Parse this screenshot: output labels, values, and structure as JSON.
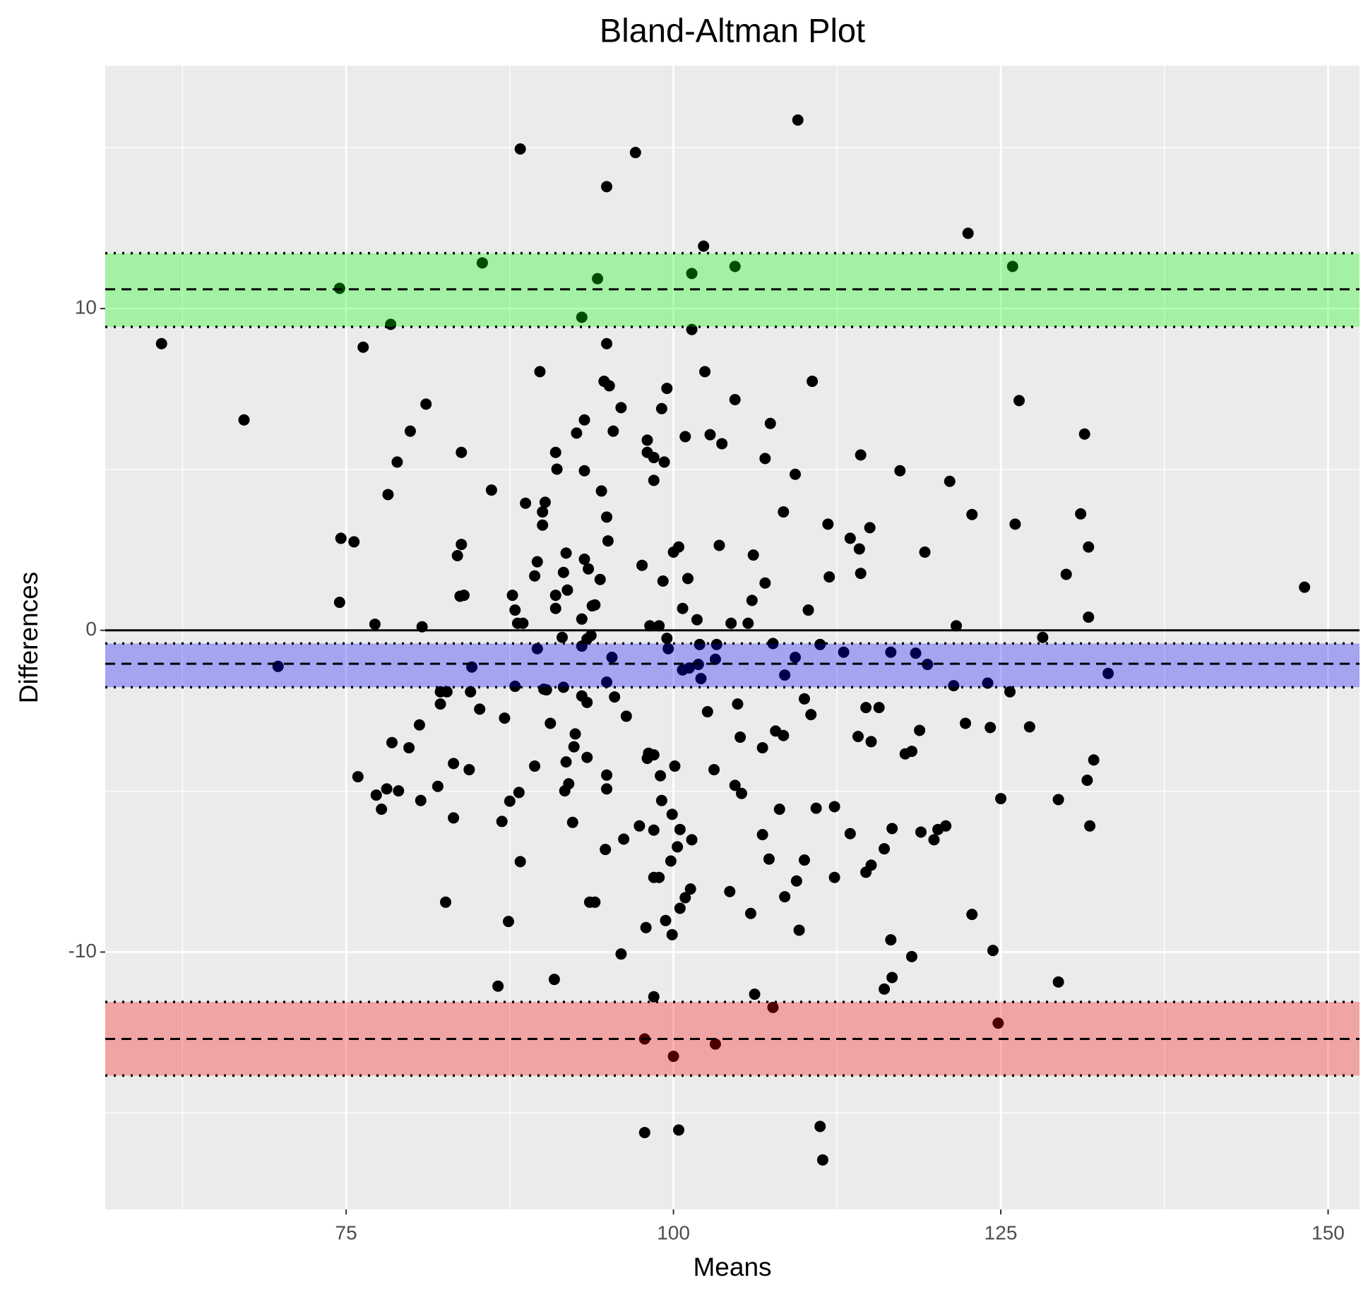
{
  "chart_data": {
    "type": "scatter",
    "title": "Bland-Altman Plot",
    "xlabel": "Means",
    "ylabel": "Differences",
    "xlim": [
      56.6,
      152.4
    ],
    "ylim": [
      -18.0,
      17.55
    ],
    "xticks": [
      75,
      100,
      125,
      150
    ],
    "yticks": [
      -10,
      0,
      10
    ],
    "xminor": [
      62.5,
      87.5,
      112.5,
      137.5
    ],
    "yminor": [
      -15,
      -5,
      5,
      15
    ],
    "grid": true,
    "color": "#000000",
    "zero_line": 0,
    "band_opacity": 0.3,
    "bands": [
      {
        "center": 10.6,
        "lower": 9.43,
        "upper": 11.72,
        "color": "#00ff00"
      },
      {
        "center": -1.04,
        "lower": -1.77,
        "upper": -0.41,
        "color": "#0000ff"
      },
      {
        "center": -12.7,
        "lower": -13.84,
        "upper": -11.55,
        "color": "#ff0000"
      }
    ],
    "x": [
      109.5,
      88.3,
      97.1,
      94.9,
      122.5,
      102.3,
      85.4,
      104.7,
      125.9,
      101.4,
      94.2,
      74.5,
      93.0,
      78.4,
      101.4,
      60.9,
      76.3,
      94.9,
      89.8,
      102.4,
      110.6,
      94.7,
      95.1,
      99.5,
      104.7,
      126.4,
      81.1,
      96.0,
      99.1,
      67.2,
      93.2,
      107.4,
      79.9,
      95.4,
      131.4,
      92.6,
      100.9,
      102.8,
      98.0,
      103.7,
      83.8,
      91.0,
      98.0,
      98.5,
      99.3,
      107.0,
      78.9,
      114.3,
      91.1,
      93.2,
      109.3,
      117.3,
      121.1,
      98.5,
      86.1,
      94.5,
      78.2,
      88.7,
      90.2,
      131.1,
      108.4,
      90.0,
      122.8,
      94.9,
      90.0,
      111.8,
      126.1,
      115.0,
      113.5,
      74.6,
      75.6,
      95.0,
      83.8,
      114.2,
      131.7,
      103.5,
      100.4,
      100.0,
      83.5,
      91.8,
      106.1,
      89.6,
      97.6,
      93.2,
      119.2,
      130.0,
      89.4,
      93.5,
      91.6,
      114.3,
      111.9,
      99.2,
      101.1,
      107.0,
      94.4,
      91.9,
      84.0,
      83.7,
      87.7,
      91.0,
      74.5,
      106.0,
      94.0,
      93.8,
      91.0,
      100.7,
      87.9,
      110.3,
      148.2,
      131.7,
      88.5,
      88.1,
      93.0,
      101.8,
      104.4,
      105.7,
      77.2,
      98.2,
      98.9,
      80.8,
      121.6,
      93.7,
      128.2,
      91.5,
      99.5,
      93.4,
      107.6,
      102.0,
      103.3,
      111.2,
      93.0,
      89.6,
      109.3,
      113.0,
      116.6,
      118.5,
      99.6,
      95.3,
      103.2,
      101.9,
      100.7,
      101.2,
      119.4,
      69.8,
      84.6,
      133.2,
      102.1,
      108.5,
      94.9,
      124.0,
      121.4,
      87.9,
      91.6,
      90.1,
      90.3,
      82.2,
      82.7,
      84.5,
      125.7,
      93.0,
      95.5,
      93.4,
      110.0,
      82.2,
      104.9,
      115.7,
      114.7,
      85.2,
      110.5,
      102.6,
      96.4,
      87.1,
      80.6,
      90.6,
      122.3,
      127.2,
      124.2,
      118.8,
      107.8,
      108.4,
      114.1,
      92.5,
      105.1,
      115.1,
      78.5,
      92.4,
      79.8,
      106.8,
      118.2,
      117.7,
      93.4,
      83.2,
      132.1,
      91.8,
      98.1,
      98.5,
      98.0,
      100.1,
      89.4,
      84.4,
      103.1,
      75.9,
      94.9,
      131.6,
      99.0,
      92.0,
      82.0,
      104.7,
      78.1,
      79.0,
      88.2,
      77.3,
      91.7,
      94.9,
      105.2,
      125.0,
      87.5,
      129.4,
      80.7,
      99.1,
      77.7,
      108.1,
      110.9,
      112.3,
      99.9,
      83.2,
      92.3,
      86.9,
      97.4,
      131.8,
      98.5,
      120.8,
      120.2,
      116.7,
      113.5,
      106.8,
      118.9,
      119.9,
      96.2,
      101.4,
      100.5,
      100.3,
      116.1,
      94.8,
      107.3,
      110.0,
      88.3,
      99.8,
      115.1,
      114.7,
      98.5,
      98.9,
      109.4,
      101.3,
      112.3,
      104.3,
      108.5,
      100.9,
      100.5,
      82.6,
      93.6,
      94.0,
      122.8,
      105.9,
      99.4,
      87.4,
      97.9,
      109.6,
      99.9,
      116.6,
      96.0,
      124.4,
      118.2,
      116.7,
      129.4,
      90.9,
      116.1,
      86.6,
      106.2,
      98.5,
      107.6,
      124.8,
      97.8,
      103.2,
      100.0,
      97.8,
      100.4,
      111.2,
      111.4
    ],
    "values": [
      15.86,
      14.96,
      14.85,
      13.79,
      12.34,
      11.94,
      11.42,
      11.31,
      11.31,
      11.09,
      10.93,
      10.63,
      9.73,
      9.51,
      9.35,
      8.91,
      8.8,
      8.91,
      8.04,
      8.04,
      7.74,
      7.74,
      7.6,
      7.52,
      7.17,
      7.14,
      7.03,
      6.92,
      6.89,
      6.54,
      6.54,
      6.43,
      6.19,
      6.19,
      6.1,
      6.13,
      6.02,
      6.08,
      5.91,
      5.8,
      5.53,
      5.53,
      5.53,
      5.37,
      5.23,
      5.34,
      5.23,
      5.45,
      5.01,
      4.96,
      4.85,
      4.96,
      4.63,
      4.66,
      4.36,
      4.33,
      4.22,
      3.95,
      3.98,
      3.62,
      3.68,
      3.68,
      3.6,
      3.52,
      3.27,
      3.3,
      3.3,
      3.19,
      2.86,
      2.86,
      2.75,
      2.78,
      2.67,
      2.53,
      2.59,
      2.64,
      2.59,
      2.43,
      2.32,
      2.4,
      2.34,
      2.13,
      2.02,
      2.21,
      2.43,
      1.74,
      1.69,
      1.91,
      1.8,
      1.77,
      1.66,
      1.53,
      1.61,
      1.47,
      1.58,
      1.25,
      1.09,
      1.06,
      1.09,
      1.09,
      0.87,
      0.93,
      0.79,
      0.76,
      0.68,
      0.68,
      0.63,
      0.63,
      1.34,
      0.41,
      0.22,
      0.22,
      0.35,
      0.33,
      0.22,
      0.22,
      0.19,
      0.14,
      0.14,
      0.11,
      0.14,
      -0.16,
      -0.22,
      -0.22,
      -0.25,
      -0.27,
      -0.41,
      -0.44,
      -0.44,
      -0.44,
      -0.49,
      -0.57,
      -0.84,
      -0.68,
      -0.68,
      -0.71,
      -0.57,
      -0.84,
      -0.9,
      -1.06,
      -1.23,
      -1.17,
      -1.06,
      -1.12,
      -1.14,
      -1.34,
      -1.5,
      -1.39,
      -1.61,
      -1.64,
      -1.72,
      -1.74,
      -1.77,
      -1.83,
      -1.85,
      -1.91,
      -1.91,
      -1.91,
      -1.91,
      -2.04,
      -2.07,
      -2.24,
      -2.13,
      -2.29,
      -2.29,
      -2.4,
      -2.4,
      -2.45,
      -2.62,
      -2.53,
      -2.67,
      -2.73,
      -2.94,
      -2.89,
      -2.89,
      -3.0,
      -3.02,
      -3.11,
      -3.13,
      -3.27,
      -3.3,
      -3.22,
      -3.32,
      -3.46,
      -3.49,
      -3.62,
      -3.65,
      -3.65,
      -3.76,
      -3.84,
      -3.95,
      -4.14,
      -4.03,
      -4.09,
      -3.82,
      -3.87,
      -3.98,
      -4.22,
      -4.22,
      -4.33,
      -4.33,
      -4.55,
      -4.5,
      -4.66,
      -4.52,
      -4.77,
      -4.85,
      -4.82,
      -4.93,
      -4.99,
      -5.04,
      -5.12,
      -4.99,
      -4.93,
      -5.07,
      -5.23,
      -5.31,
      -5.26,
      -5.29,
      -5.29,
      -5.56,
      -5.56,
      -5.53,
      -5.48,
      -5.72,
      -5.83,
      -5.97,
      -5.94,
      -6.08,
      -6.08,
      -6.21,
      -6.08,
      -6.19,
      -6.16,
      -6.32,
      -6.35,
      -6.27,
      -6.51,
      -6.49,
      -6.51,
      -6.19,
      -6.73,
      -6.79,
      -6.81,
      -7.11,
      -7.14,
      -7.19,
      -7.17,
      -7.3,
      -7.52,
      -7.68,
      -7.68,
      -7.79,
      -8.04,
      -7.68,
      -8.12,
      -8.28,
      -8.31,
      -8.64,
      -8.45,
      -8.45,
      -8.45,
      -8.83,
      -8.8,
      -9.02,
      -9.05,
      -9.24,
      -9.32,
      -9.46,
      -9.62,
      -10.06,
      -9.95,
      -10.14,
      -10.79,
      -10.93,
      -10.85,
      -11.15,
      -11.06,
      -11.31,
      -11.39,
      -11.72,
      -12.21,
      -12.7,
      -12.86,
      -13.24,
      -15.61,
      -15.53,
      -15.42,
      -16.46
    ]
  }
}
